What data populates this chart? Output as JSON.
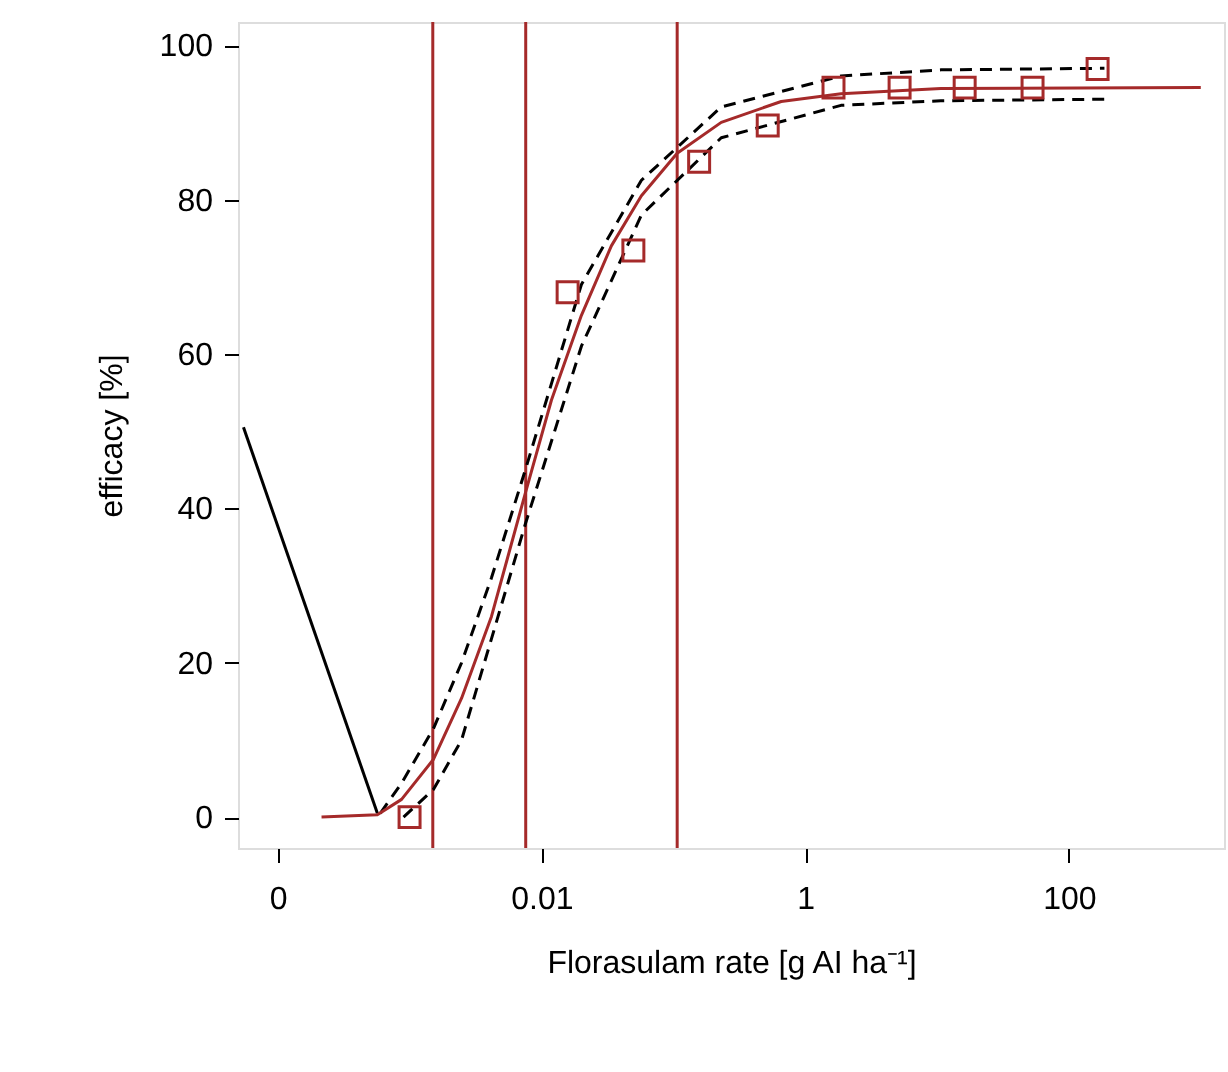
{
  "chart_data": {
    "type": "line",
    "xlabel": "Florasulam rate [g AI ha⁻¹]",
    "ylabel": "efficacy [%]",
    "log": "x",
    "grid": false,
    "xlim": [
      5e-05,
      1500
    ],
    "xticks": [
      {
        "value": 0.0001,
        "label": "0"
      },
      0.01,
      1,
      100
    ],
    "ylim": [
      -4,
      103
    ],
    "yticks": [
      0,
      20,
      40,
      60,
      80,
      100
    ],
    "series": [
      {
        "color": "#000000",
        "line_style": "solid",
        "marker": "none",
        "x": [
          5.5e-05,
          0.00057
        ],
        "values": [
          50.5,
          0.5
        ]
      },
      {
        "type": "line",
        "color": "#000000",
        "line_style": "dashed",
        "marker": "none",
        "x": [
          0.0006,
          0.00087,
          0.00152,
          0.00248,
          0.00418,
          0.00756,
          0.0201,
          0.0573,
          0.231,
          1.87,
          10.7,
          186
        ],
        "values": [
          0.5,
          4.4,
          11.5,
          20,
          31,
          45,
          69,
          82.5,
          92,
          96,
          96.8,
          97
        ]
      },
      {
        "type": "line",
        "color": "#000000",
        "line_style": "dashed",
        "marker": "none",
        "x": [
          0.0009,
          0.00152,
          0.00248,
          0.00756,
          0.0201,
          0.0573,
          0.231,
          1.87,
          10.7,
          186
        ],
        "values": [
          0,
          3.6,
          10,
          38,
          61,
          78,
          88,
          92.2,
          92.8,
          93
        ]
      },
      {
        "color": "#a52a2a",
        "line_style": "solid",
        "marker": "none",
        "x": [
          0.000215,
          0.00057,
          0.00087,
          0.00152,
          0.00248,
          0.00418,
          0.00756,
          0.0119,
          0.0201,
          0.0339,
          0.0573,
          0.107,
          0.231,
          0.658,
          1.87,
          10.7,
          1000
        ],
        "values": [
          0,
          0.3,
          2.3,
          7.5,
          15.4,
          26,
          42,
          54,
          65,
          74,
          80.5,
          86,
          90,
          92.7,
          93.7,
          94.4,
          94.5
        ]
      },
      {
        "type": "scatter",
        "color": "#a52a2a",
        "marker": "square",
        "x": [
          0.001,
          0.0158,
          0.0498,
          0.157,
          0.52,
          1.64,
          5.2,
          16.2,
          53,
          165
        ],
        "values": [
          0,
          68,
          73.4,
          84.9,
          89.6,
          94.5,
          94.5,
          94.5,
          94.5,
          96.9
        ]
      }
    ],
    "ref_lines": [
      {
        "axis": "x",
        "value": 0.0015,
        "color": "#a52a2a"
      },
      {
        "axis": "x",
        "value": 0.0076,
        "color": "#a52a2a"
      },
      {
        "axis": "x",
        "value": 0.107,
        "color": "#a52a2a"
      }
    ]
  }
}
